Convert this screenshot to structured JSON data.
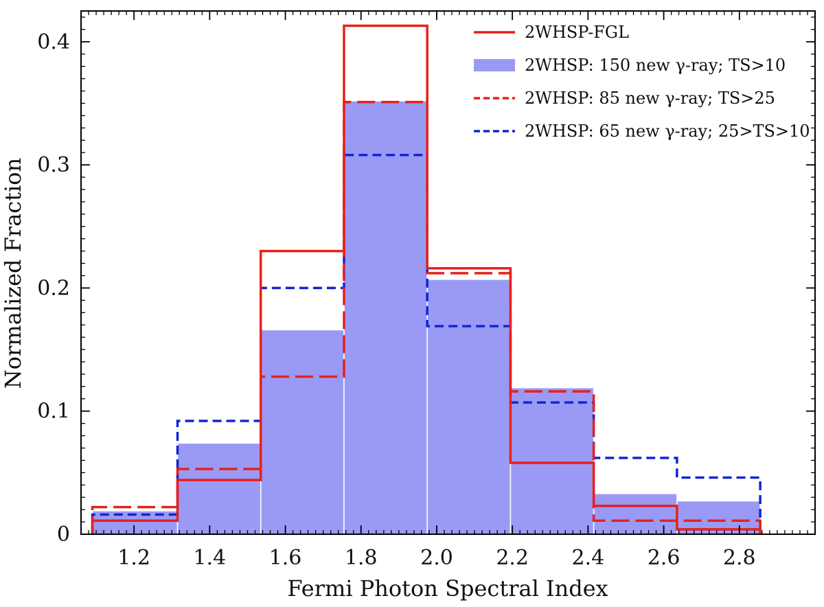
{
  "chart_data": {
    "type": "bar",
    "xlabel": "Fermi Photon Spectral Index",
    "ylabel": "Normalized Fraction",
    "xlim": [
      1.06,
      3.0
    ],
    "ylim": [
      0,
      0.425
    ],
    "xticks": [
      1.2,
      1.4,
      1.6,
      1.8,
      2.0,
      2.2,
      2.4,
      2.6,
      2.8
    ],
    "xtick_labels": [
      "1.2",
      "1.4",
      "1.6",
      "1.8",
      "2.0",
      "2.2",
      "2.4",
      "2.6",
      "2.8"
    ],
    "yticks": [
      0,
      0.1,
      0.2,
      0.3,
      0.4
    ],
    "ytick_labels": [
      "0",
      "0.1",
      "0.2",
      "0.3",
      "0.4"
    ],
    "bin_edges": [
      1.09,
      1.315,
      1.535,
      1.755,
      1.975,
      2.195,
      2.415,
      2.635,
      2.855
    ],
    "legend_position": "top-right",
    "grid": false,
    "series": [
      {
        "name": "2WHSP-FGL",
        "style": "step-solid",
        "color": "#e8201a",
        "values": [
          0.011,
          0.044,
          0.23,
          0.413,
          0.216,
          0.058,
          0.023,
          0.004
        ]
      },
      {
        "name": "2WHSP: 150 new γ-ray; TS>10",
        "style": "filled",
        "color": "#9a9af5",
        "values": [
          0.019,
          0.074,
          0.166,
          0.352,
          0.207,
          0.119,
          0.033,
          0.027
        ]
      },
      {
        "name": "2WHSP: 85 new γ-ray; TS>25",
        "style": "step-dashed",
        "color": "#e8201a",
        "values": [
          0.022,
          0.053,
          0.128,
          0.351,
          0.212,
          0.116,
          0.011,
          0.011
        ]
      },
      {
        "name": "2WHSP: 65 new γ-ray; 25>TS>10",
        "style": "step-dashed",
        "color": "#1424d6",
        "values": [
          0.016,
          0.092,
          0.2,
          0.308,
          0.169,
          0.107,
          0.062,
          0.046
        ]
      }
    ]
  }
}
